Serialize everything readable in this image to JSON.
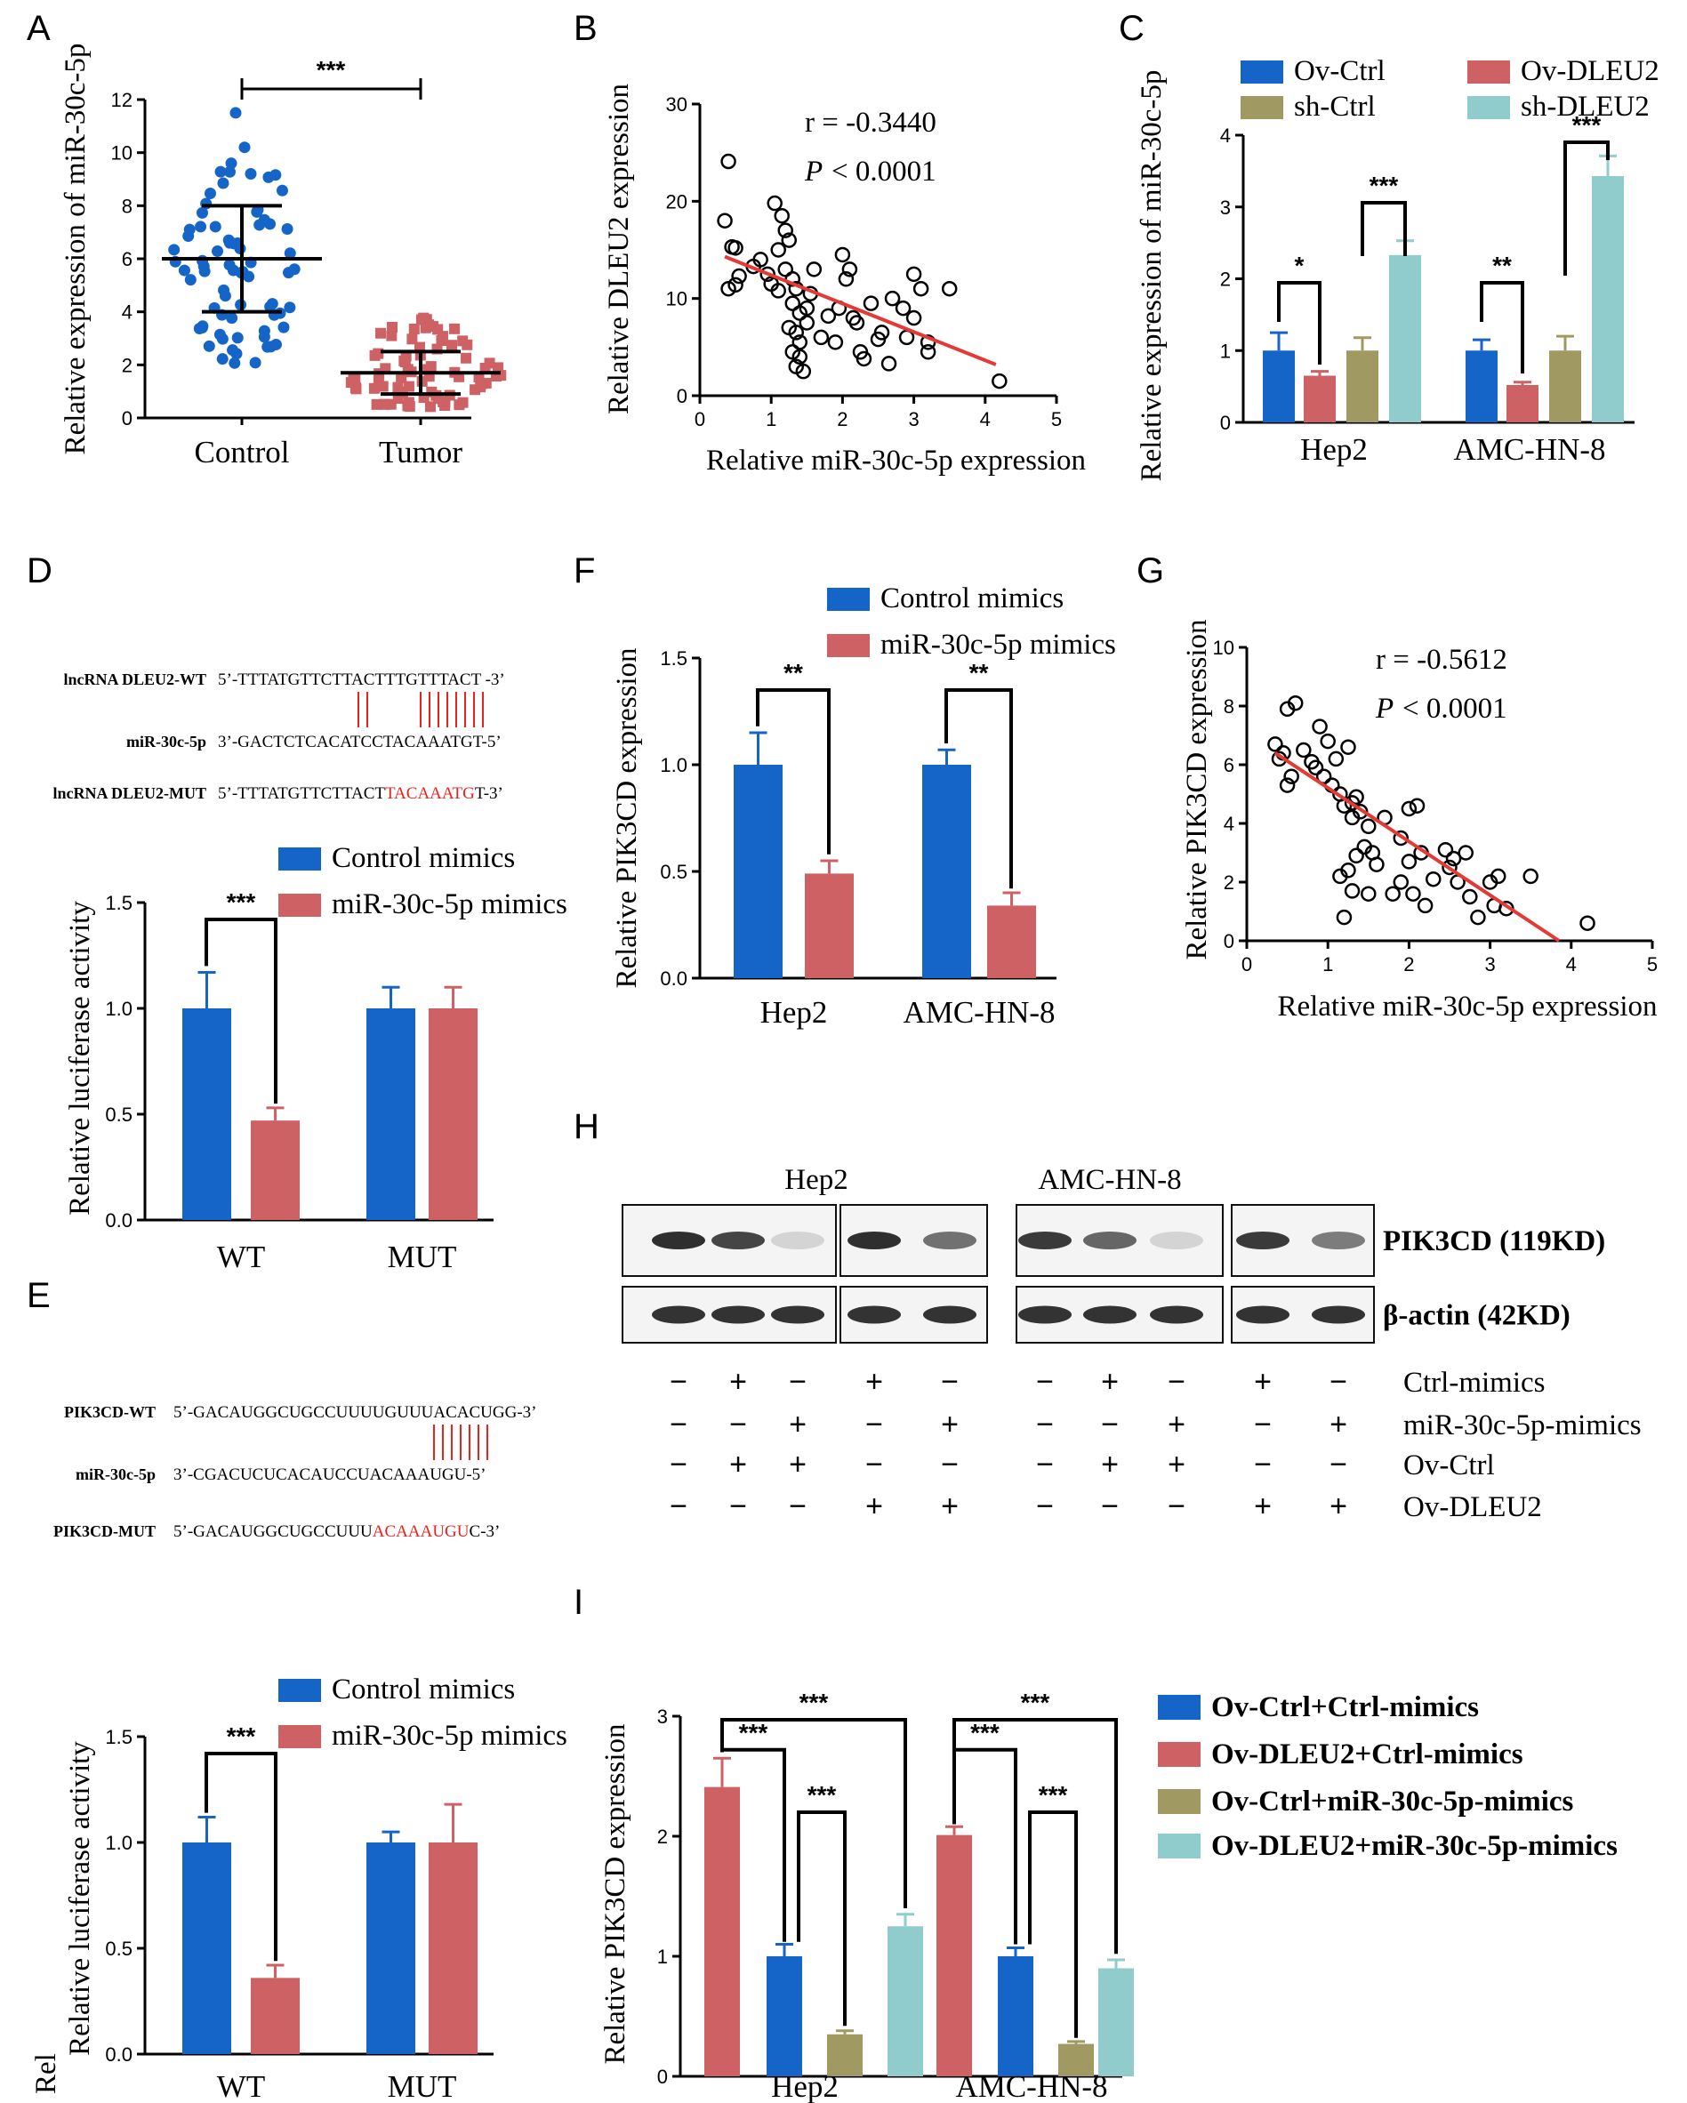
{
  "colors": {
    "blue": "#1565c8",
    "red": "#cd6164",
    "olive": "#a09a62",
    "cyan": "#8fcccb",
    "redtext": "#e8221f",
    "line": "#e53935"
  },
  "panel_labels": {
    "A": "A",
    "B": "B",
    "C": "C",
    "D": "D",
    "E": "E",
    "F": "F",
    "G": "G",
    "H": "H",
    "I": "I"
  },
  "chart_data": [
    {
      "id": "A",
      "type": "scatter",
      "ylabel": "Relative expression of miR-30c-5p",
      "ylim": [
        0,
        12
      ],
      "yticks": [
        "0",
        "2",
        "4",
        "6",
        "8",
        "10",
        "12"
      ],
      "categories": [
        "Control",
        "Tumor"
      ],
      "means": [
        6.0,
        1.7
      ],
      "sd": [
        2.0,
        0.8
      ],
      "significance": "***"
    },
    {
      "id": "B",
      "type": "scatter",
      "xlabel": "Relative miR-30c-5p expression",
      "ylabel": "Relative DLEU2 expression",
      "xlim": [
        0,
        5
      ],
      "ylim": [
        0,
        30
      ],
      "xticks": [
        "0",
        "1",
        "2",
        "3",
        "4",
        "5"
      ],
      "yticks": [
        "0",
        "10",
        "20",
        "30"
      ],
      "r": "r = -0.3440",
      "p": "< 0.0001",
      "points": [
        [
          0.4,
          24.1
        ],
        [
          0.35,
          18
        ],
        [
          0.45,
          15.3
        ],
        [
          0.5,
          15.2
        ],
        [
          0.55,
          12.3
        ],
        [
          0.5,
          11.4
        ],
        [
          0.4,
          11
        ],
        [
          0.75,
          13.3
        ],
        [
          0.85,
          14
        ],
        [
          0.95,
          12.5
        ],
        [
          1.0,
          11.5
        ],
        [
          1.05,
          19.8
        ],
        [
          1.15,
          18.5
        ],
        [
          1.2,
          17
        ],
        [
          1.25,
          16
        ],
        [
          1.1,
          15
        ],
        [
          1.2,
          13
        ],
        [
          1.3,
          12
        ],
        [
          1.1,
          10.8
        ],
        [
          1.35,
          11
        ],
        [
          1.3,
          9.5
        ],
        [
          1.4,
          8.5
        ],
        [
          1.25,
          7
        ],
        [
          1.35,
          6.5
        ],
        [
          1.4,
          5.5
        ],
        [
          1.3,
          4.5
        ],
        [
          1.4,
          4
        ],
        [
          1.35,
          3
        ],
        [
          1.45,
          2.5
        ],
        [
          1.5,
          9
        ],
        [
          1.55,
          10.5
        ],
        [
          1.6,
          13
        ],
        [
          1.5,
          7.5
        ],
        [
          1.7,
          6
        ],
        [
          1.8,
          8.2
        ],
        [
          1.9,
          5.5
        ],
        [
          1.95,
          9
        ],
        [
          2.0,
          14.5
        ],
        [
          2.05,
          12
        ],
        [
          2.1,
          13
        ],
        [
          2.15,
          8
        ],
        [
          2.2,
          7.5
        ],
        [
          2.25,
          4.5
        ],
        [
          2.3,
          3.8
        ],
        [
          2.4,
          9.5
        ],
        [
          2.5,
          5.8
        ],
        [
          2.55,
          6.5
        ],
        [
          2.7,
          10
        ],
        [
          2.85,
          9
        ],
        [
          2.9,
          6
        ],
        [
          3.0,
          12.5
        ],
        [
          3.1,
          11
        ],
        [
          3.0,
          8
        ],
        [
          3.2,
          4.5
        ],
        [
          3.5,
          11
        ],
        [
          3.2,
          5.5
        ],
        [
          4.2,
          1.5
        ],
        [
          2.65,
          3.3
        ]
      ],
      "fit": [
        [
          0.35,
          14.3
        ],
        [
          4.15,
          3.2
        ]
      ]
    },
    {
      "id": "C",
      "type": "bar",
      "ylabel": "Relative expression of miR-30c-5p",
      "ylim": [
        0,
        4
      ],
      "yticks": [
        "0",
        "1",
        "2",
        "3",
        "4"
      ],
      "categories": [
        "Hep2",
        "AMC-HN-8"
      ],
      "series": [
        {
          "name": "Ov-Ctrl",
          "values": [
            1.0,
            1.0
          ],
          "err": [
            0.25,
            0.15
          ]
        },
        {
          "name": "Ov-DLEU2",
          "values": [
            0.65,
            0.52
          ],
          "err": [
            0.06,
            0.04
          ]
        },
        {
          "name": "sh-Ctrl",
          "values": [
            1.0,
            1.0
          ],
          "err": [
            0.18,
            0.2
          ]
        },
        {
          "name": "sh-DLEU2",
          "values": [
            2.33,
            3.43
          ],
          "err": [
            0.2,
            0.28
          ]
        }
      ],
      "comparisons": [
        "*",
        "***",
        "**",
        "***"
      ]
    },
    {
      "id": "D",
      "type": "bar",
      "ylabel": "Relative luciferase activity",
      "ylim": [
        0,
        1.5
      ],
      "yticks": [
        "0.0",
        "0.5",
        "1.0",
        "1.5"
      ],
      "categories": [
        "WT",
        "MUT"
      ],
      "series": [
        {
          "name": "Control mimics",
          "values": [
            1.0,
            1.0
          ],
          "err": [
            0.17,
            0.1
          ]
        },
        {
          "name": "miR-30c-5p mimics",
          "values": [
            0.47,
            1.0
          ],
          "err": [
            0.06,
            0.1
          ]
        }
      ],
      "comparisons": [
        "***"
      ],
      "seq": {
        "wt_label": "lncRNA DLEU2-WT",
        "wt_seq": "5’-TTTATGTTCTTACTTTGTTTACT -3’",
        "mir_label": "miR-30c-5p",
        "mir_seq": "3’-GACTCTCACATCCTACAAATGT-5’",
        "mut_label": "lncRNA DLEU2-MUT",
        "mut_prefix": "5’-TTTATGTTCTTACT",
        "mut_red": "TACAAATG",
        "mut_suffix": "T-3’"
      }
    },
    {
      "id": "E",
      "type": "bar",
      "ylabel": "Relative luciferase activity",
      "ylabel_prefix": "Rel",
      "ylim": [
        0,
        1.5
      ],
      "yticks": [
        "0.0",
        "0.5",
        "1.0",
        "1.5"
      ],
      "categories": [
        "WT",
        "MUT"
      ],
      "series": [
        {
          "name": "Control mimics",
          "values": [
            1.0,
            1.0
          ],
          "err": [
            0.12,
            0.05
          ]
        },
        {
          "name": "miR-30c-5p mimics",
          "values": [
            0.36,
            1.0
          ],
          "err": [
            0.06,
            0.18
          ]
        }
      ],
      "comparisons": [
        "***"
      ],
      "seq": {
        "wt_label": "PIK3CD-WT",
        "wt_seq": "5’-GACAUGGCUGCCUUUUGUUUACACUGG-3’",
        "mir_label": "miR-30c-5p",
        "mir_seq": "3’-CGACUCUCACAUCCUACAAAUGU-5’",
        "mut_label": "PIK3CD-MUT",
        "mut_prefix": "5’-GACAUGGCUGCCUUU",
        "mut_red": "ACAAAUGU",
        "mut_suffix": "C-3’"
      }
    },
    {
      "id": "F",
      "type": "bar",
      "ylabel": "Relative PIK3CD expression",
      "ylim": [
        0,
        1.5
      ],
      "yticks": [
        "0.0",
        "0.5",
        "1.0",
        "1.5"
      ],
      "categories": [
        "Hep2",
        "AMC-HN-8"
      ],
      "series": [
        {
          "name": "Control mimics",
          "values": [
            1.0,
            1.0
          ],
          "err": [
            0.15,
            0.07
          ]
        },
        {
          "name": "miR-30c-5p mimics",
          "values": [
            0.49,
            0.34
          ],
          "err": [
            0.06,
            0.06
          ]
        }
      ],
      "comparisons": [
        "**",
        "**"
      ]
    },
    {
      "id": "G",
      "type": "scatter",
      "xlabel": "Relative miR-30c-5p expression",
      "ylabel": "Relative PIK3CD expression",
      "xlim": [
        0,
        5
      ],
      "ylim": [
        0,
        10
      ],
      "xticks": [
        "0",
        "1",
        "2",
        "3",
        "4",
        "5"
      ],
      "yticks": [
        "0",
        "2",
        "4",
        "6",
        "8",
        "10"
      ],
      "r": "r = -0.5612",
      "p": "< 0.0001",
      "points": [
        [
          0.35,
          6.7
        ],
        [
          0.45,
          6.4
        ],
        [
          0.5,
          7.9
        ],
        [
          0.6,
          8.1
        ],
        [
          0.4,
          6.2
        ],
        [
          0.55,
          5.6
        ],
        [
          0.5,
          5.3
        ],
        [
          0.7,
          6.5
        ],
        [
          0.8,
          6.1
        ],
        [
          0.9,
          7.3
        ],
        [
          1.0,
          6.8
        ],
        [
          0.85,
          5.9
        ],
        [
          0.95,
          5.6
        ],
        [
          1.05,
          5.3
        ],
        [
          1.1,
          6.2
        ],
        [
          1.15,
          5.0
        ],
        [
          1.2,
          4.6
        ],
        [
          1.3,
          4.7
        ],
        [
          1.25,
          6.6
        ],
        [
          1.35,
          4.9
        ],
        [
          1.3,
          4.2
        ],
        [
          1.4,
          4.4
        ],
        [
          1.5,
          3.9
        ],
        [
          1.45,
          3.2
        ],
        [
          1.35,
          2.9
        ],
        [
          1.25,
          2.4
        ],
        [
          1.15,
          2.2
        ],
        [
          1.3,
          1.7
        ],
        [
          1.2,
          0.8
        ],
        [
          1.5,
          1.6
        ],
        [
          1.55,
          3.0
        ],
        [
          1.7,
          4.2
        ],
        [
          1.9,
          3.5
        ],
        [
          2.0,
          4.5
        ],
        [
          2.1,
          4.6
        ],
        [
          2.15,
          3.0
        ],
        [
          2.0,
          2.7
        ],
        [
          1.9,
          2.0
        ],
        [
          1.8,
          1.6
        ],
        [
          2.05,
          1.6
        ],
        [
          2.2,
          1.2
        ],
        [
          2.3,
          2.1
        ],
        [
          2.5,
          2.5
        ],
        [
          2.45,
          3.1
        ],
        [
          2.6,
          2.0
        ],
        [
          2.7,
          3.0
        ],
        [
          2.75,
          1.5
        ],
        [
          2.85,
          0.8
        ],
        [
          3.0,
          2.0
        ],
        [
          3.05,
          1.2
        ],
        [
          3.1,
          2.2
        ],
        [
          3.5,
          2.2
        ],
        [
          3.2,
          1.1
        ],
        [
          4.2,
          0.6
        ],
        [
          2.55,
          2.8
        ],
        [
          1.6,
          2.6
        ]
      ],
      "fit": [
        [
          0.35,
          6.4
        ],
        [
          3.85,
          0.0
        ]
      ]
    },
    {
      "id": "I",
      "type": "bar",
      "ylabel": "Relative PIK3CD expression",
      "ylim": [
        0,
        3
      ],
      "yticks": [
        "0",
        "1",
        "2",
        "3"
      ],
      "categories": [
        "Hep2",
        "AMC-HN-8"
      ],
      "series": [
        {
          "name": "Ov-DLEU2+Ctrl-mimics",
          "values": [
            2.41,
            2.01
          ],
          "err": [
            0.24,
            0.07
          ]
        },
        {
          "name": "Ov-Ctrl+Ctrl-mimics",
          "values": [
            1.0,
            1.0
          ],
          "err": [
            0.1,
            0.07
          ]
        },
        {
          "name": "Ov-Ctrl+miR-30c-5p-mimics",
          "values": [
            0.35,
            0.27
          ],
          "err": [
            0.03,
            0.02
          ]
        },
        {
          "name": "Ov-DLEU2+miR-30c-5p-mimics",
          "values": [
            1.25,
            0.9
          ],
          "err": [
            0.1,
            0.07
          ]
        }
      ],
      "legend": [
        "Ov-Ctrl+Ctrl-mimics",
        "Ov-DLEU2+Ctrl-mimics",
        "Ov-Ctrl+miR-30c-5p-mimics",
        "Ov-DLEU2+miR-30c-5p-mimics"
      ],
      "comparisons": [
        "***",
        "***",
        "***",
        "***",
        "***",
        "***"
      ]
    }
  ],
  "western": {
    "cell_lines": [
      "Hep2",
      "AMC-HN-8"
    ],
    "bands": [
      "PIK3CD (119KD)",
      "β-actin (42KD)"
    ],
    "row_labels": [
      "Ctrl-mimics",
      "miR-30c-5p-mimics",
      "Ov-Ctrl",
      "Ov-DLEU2"
    ],
    "signs": [
      [
        "−",
        "+",
        "−",
        "+",
        "−",
        "−",
        "+",
        "−",
        "+",
        "−"
      ],
      [
        "−",
        "−",
        "+",
        "−",
        "+",
        "−",
        "−",
        "+",
        "−",
        "+"
      ],
      [
        "−",
        "+",
        "+",
        "−",
        "−",
        "−",
        "+",
        "+",
        "−",
        "−"
      ],
      [
        "−",
        "−",
        "−",
        "+",
        "+",
        "−",
        "−",
        "−",
        "+",
        "+"
      ]
    ],
    "pik3cd_intensity": [
      0.9,
      0.8,
      0.15,
      0.9,
      0.6,
      0.85,
      0.65,
      0.15,
      0.85,
      0.55
    ]
  }
}
